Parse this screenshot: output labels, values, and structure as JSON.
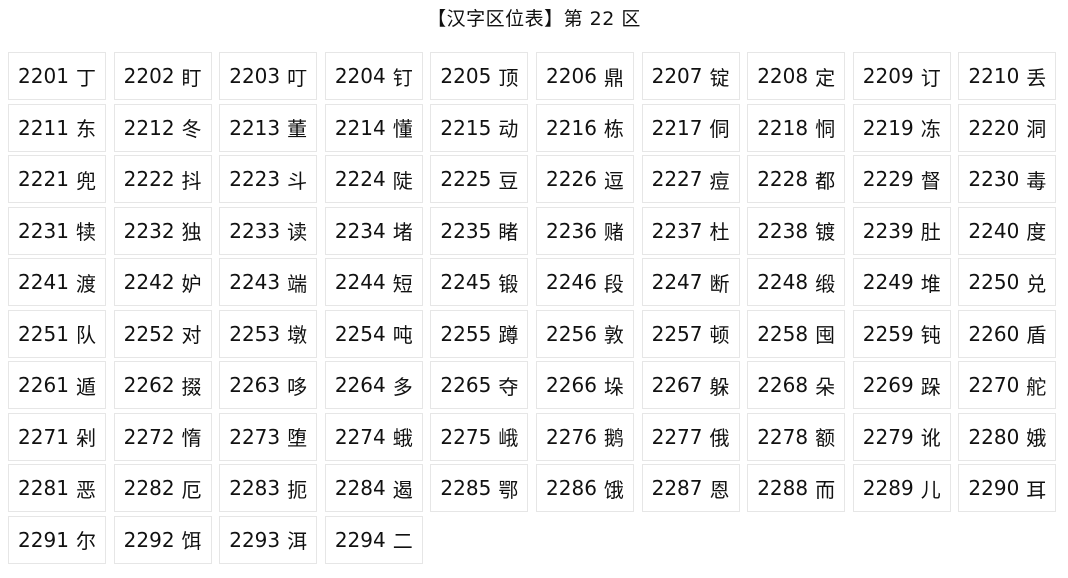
{
  "title": "【汉字区位表】第 22 区",
  "cells": [
    {
      "code": "2201",
      "char": "丁"
    },
    {
      "code": "2202",
      "char": "盯"
    },
    {
      "code": "2203",
      "char": "叮"
    },
    {
      "code": "2204",
      "char": "钉"
    },
    {
      "code": "2205",
      "char": "顶"
    },
    {
      "code": "2206",
      "char": "鼎"
    },
    {
      "code": "2207",
      "char": "锭"
    },
    {
      "code": "2208",
      "char": "定"
    },
    {
      "code": "2209",
      "char": "订"
    },
    {
      "code": "2210",
      "char": "丢"
    },
    {
      "code": "2211",
      "char": "东"
    },
    {
      "code": "2212",
      "char": "冬"
    },
    {
      "code": "2213",
      "char": "董"
    },
    {
      "code": "2214",
      "char": "懂"
    },
    {
      "code": "2215",
      "char": "动"
    },
    {
      "code": "2216",
      "char": "栋"
    },
    {
      "code": "2217",
      "char": "侗"
    },
    {
      "code": "2218",
      "char": "恫"
    },
    {
      "code": "2219",
      "char": "冻"
    },
    {
      "code": "2220",
      "char": "洞"
    },
    {
      "code": "2221",
      "char": "兜"
    },
    {
      "code": "2222",
      "char": "抖"
    },
    {
      "code": "2223",
      "char": "斗"
    },
    {
      "code": "2224",
      "char": "陡"
    },
    {
      "code": "2225",
      "char": "豆"
    },
    {
      "code": "2226",
      "char": "逗"
    },
    {
      "code": "2227",
      "char": "痘"
    },
    {
      "code": "2228",
      "char": "都"
    },
    {
      "code": "2229",
      "char": "督"
    },
    {
      "code": "2230",
      "char": "毒"
    },
    {
      "code": "2231",
      "char": "犊"
    },
    {
      "code": "2232",
      "char": "独"
    },
    {
      "code": "2233",
      "char": "读"
    },
    {
      "code": "2234",
      "char": "堵"
    },
    {
      "code": "2235",
      "char": "睹"
    },
    {
      "code": "2236",
      "char": "赌"
    },
    {
      "code": "2237",
      "char": "杜"
    },
    {
      "code": "2238",
      "char": "镀"
    },
    {
      "code": "2239",
      "char": "肚"
    },
    {
      "code": "2240",
      "char": "度"
    },
    {
      "code": "2241",
      "char": "渡"
    },
    {
      "code": "2242",
      "char": "妒"
    },
    {
      "code": "2243",
      "char": "端"
    },
    {
      "code": "2244",
      "char": "短"
    },
    {
      "code": "2245",
      "char": "锻"
    },
    {
      "code": "2246",
      "char": "段"
    },
    {
      "code": "2247",
      "char": "断"
    },
    {
      "code": "2248",
      "char": "缎"
    },
    {
      "code": "2249",
      "char": "堆"
    },
    {
      "code": "2250",
      "char": "兑"
    },
    {
      "code": "2251",
      "char": "队"
    },
    {
      "code": "2252",
      "char": "对"
    },
    {
      "code": "2253",
      "char": "墩"
    },
    {
      "code": "2254",
      "char": "吨"
    },
    {
      "code": "2255",
      "char": "蹲"
    },
    {
      "code": "2256",
      "char": "敦"
    },
    {
      "code": "2257",
      "char": "顿"
    },
    {
      "code": "2258",
      "char": "囤"
    },
    {
      "code": "2259",
      "char": "钝"
    },
    {
      "code": "2260",
      "char": "盾"
    },
    {
      "code": "2261",
      "char": "遁"
    },
    {
      "code": "2262",
      "char": "掇"
    },
    {
      "code": "2263",
      "char": "哆"
    },
    {
      "code": "2264",
      "char": "多"
    },
    {
      "code": "2265",
      "char": "夺"
    },
    {
      "code": "2266",
      "char": "垛"
    },
    {
      "code": "2267",
      "char": "躲"
    },
    {
      "code": "2268",
      "char": "朵"
    },
    {
      "code": "2269",
      "char": "跺"
    },
    {
      "code": "2270",
      "char": "舵"
    },
    {
      "code": "2271",
      "char": "剁"
    },
    {
      "code": "2272",
      "char": "惰"
    },
    {
      "code": "2273",
      "char": "堕"
    },
    {
      "code": "2274",
      "char": "蛾"
    },
    {
      "code": "2275",
      "char": "峨"
    },
    {
      "code": "2276",
      "char": "鹅"
    },
    {
      "code": "2277",
      "char": "俄"
    },
    {
      "code": "2278",
      "char": "额"
    },
    {
      "code": "2279",
      "char": "讹"
    },
    {
      "code": "2280",
      "char": "娥"
    },
    {
      "code": "2281",
      "char": "恶"
    },
    {
      "code": "2282",
      "char": "厄"
    },
    {
      "code": "2283",
      "char": "扼"
    },
    {
      "code": "2284",
      "char": "遏"
    },
    {
      "code": "2285",
      "char": "鄂"
    },
    {
      "code": "2286",
      "char": "饿"
    },
    {
      "code": "2287",
      "char": "恩"
    },
    {
      "code": "2288",
      "char": "而"
    },
    {
      "code": "2289",
      "char": "儿"
    },
    {
      "code": "2290",
      "char": "耳"
    },
    {
      "code": "2291",
      "char": "尔"
    },
    {
      "code": "2292",
      "char": "饵"
    },
    {
      "code": "2293",
      "char": "洱"
    },
    {
      "code": "2294",
      "char": "二"
    }
  ]
}
